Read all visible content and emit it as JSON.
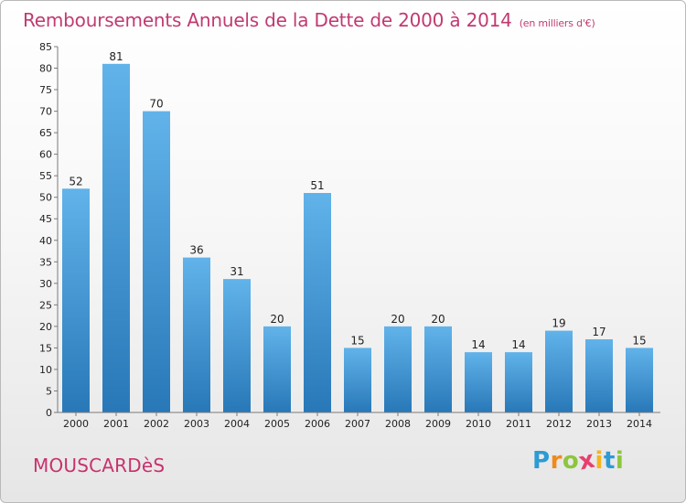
{
  "header": {
    "title": "Remboursements Annuels de la Dette de 2000 à 2014",
    "unit": "(en milliers d'€)"
  },
  "footer": {
    "commune": "MOUSCARDèS",
    "brand": [
      "P",
      "r",
      "o",
      "x",
      "i",
      "t",
      "i"
    ],
    "brand_colors": [
      "#2d9bd4",
      "#f08a1c",
      "#8cc63e",
      "#e83f6f",
      "#f5b41b",
      "#2d9bd4",
      "#8cc63e"
    ]
  },
  "colors": {
    "bar_top": "#61b3ea",
    "bar_bottom": "#2878b8",
    "axis": "#7a7a7a",
    "grid": "#c8c8c8"
  },
  "chart_data": {
    "type": "bar",
    "title": "Remboursements Annuels de la Dette de 2000 à 2014",
    "xlabel": "",
    "ylabel": "",
    "categories": [
      "2000",
      "2001",
      "2002",
      "2003",
      "2004",
      "2005",
      "2006",
      "2007",
      "2008",
      "2009",
      "2010",
      "2011",
      "2012",
      "2013",
      "2014"
    ],
    "values": [
      52,
      81,
      70,
      36,
      31,
      20,
      51,
      15,
      20,
      20,
      14,
      14,
      19,
      17,
      15
    ],
    "ylim": [
      0,
      85
    ],
    "yticks": [
      0,
      5,
      10,
      15,
      20,
      25,
      30,
      35,
      40,
      45,
      50,
      55,
      60,
      65,
      70,
      75,
      80,
      85
    ],
    "grid": false
  }
}
